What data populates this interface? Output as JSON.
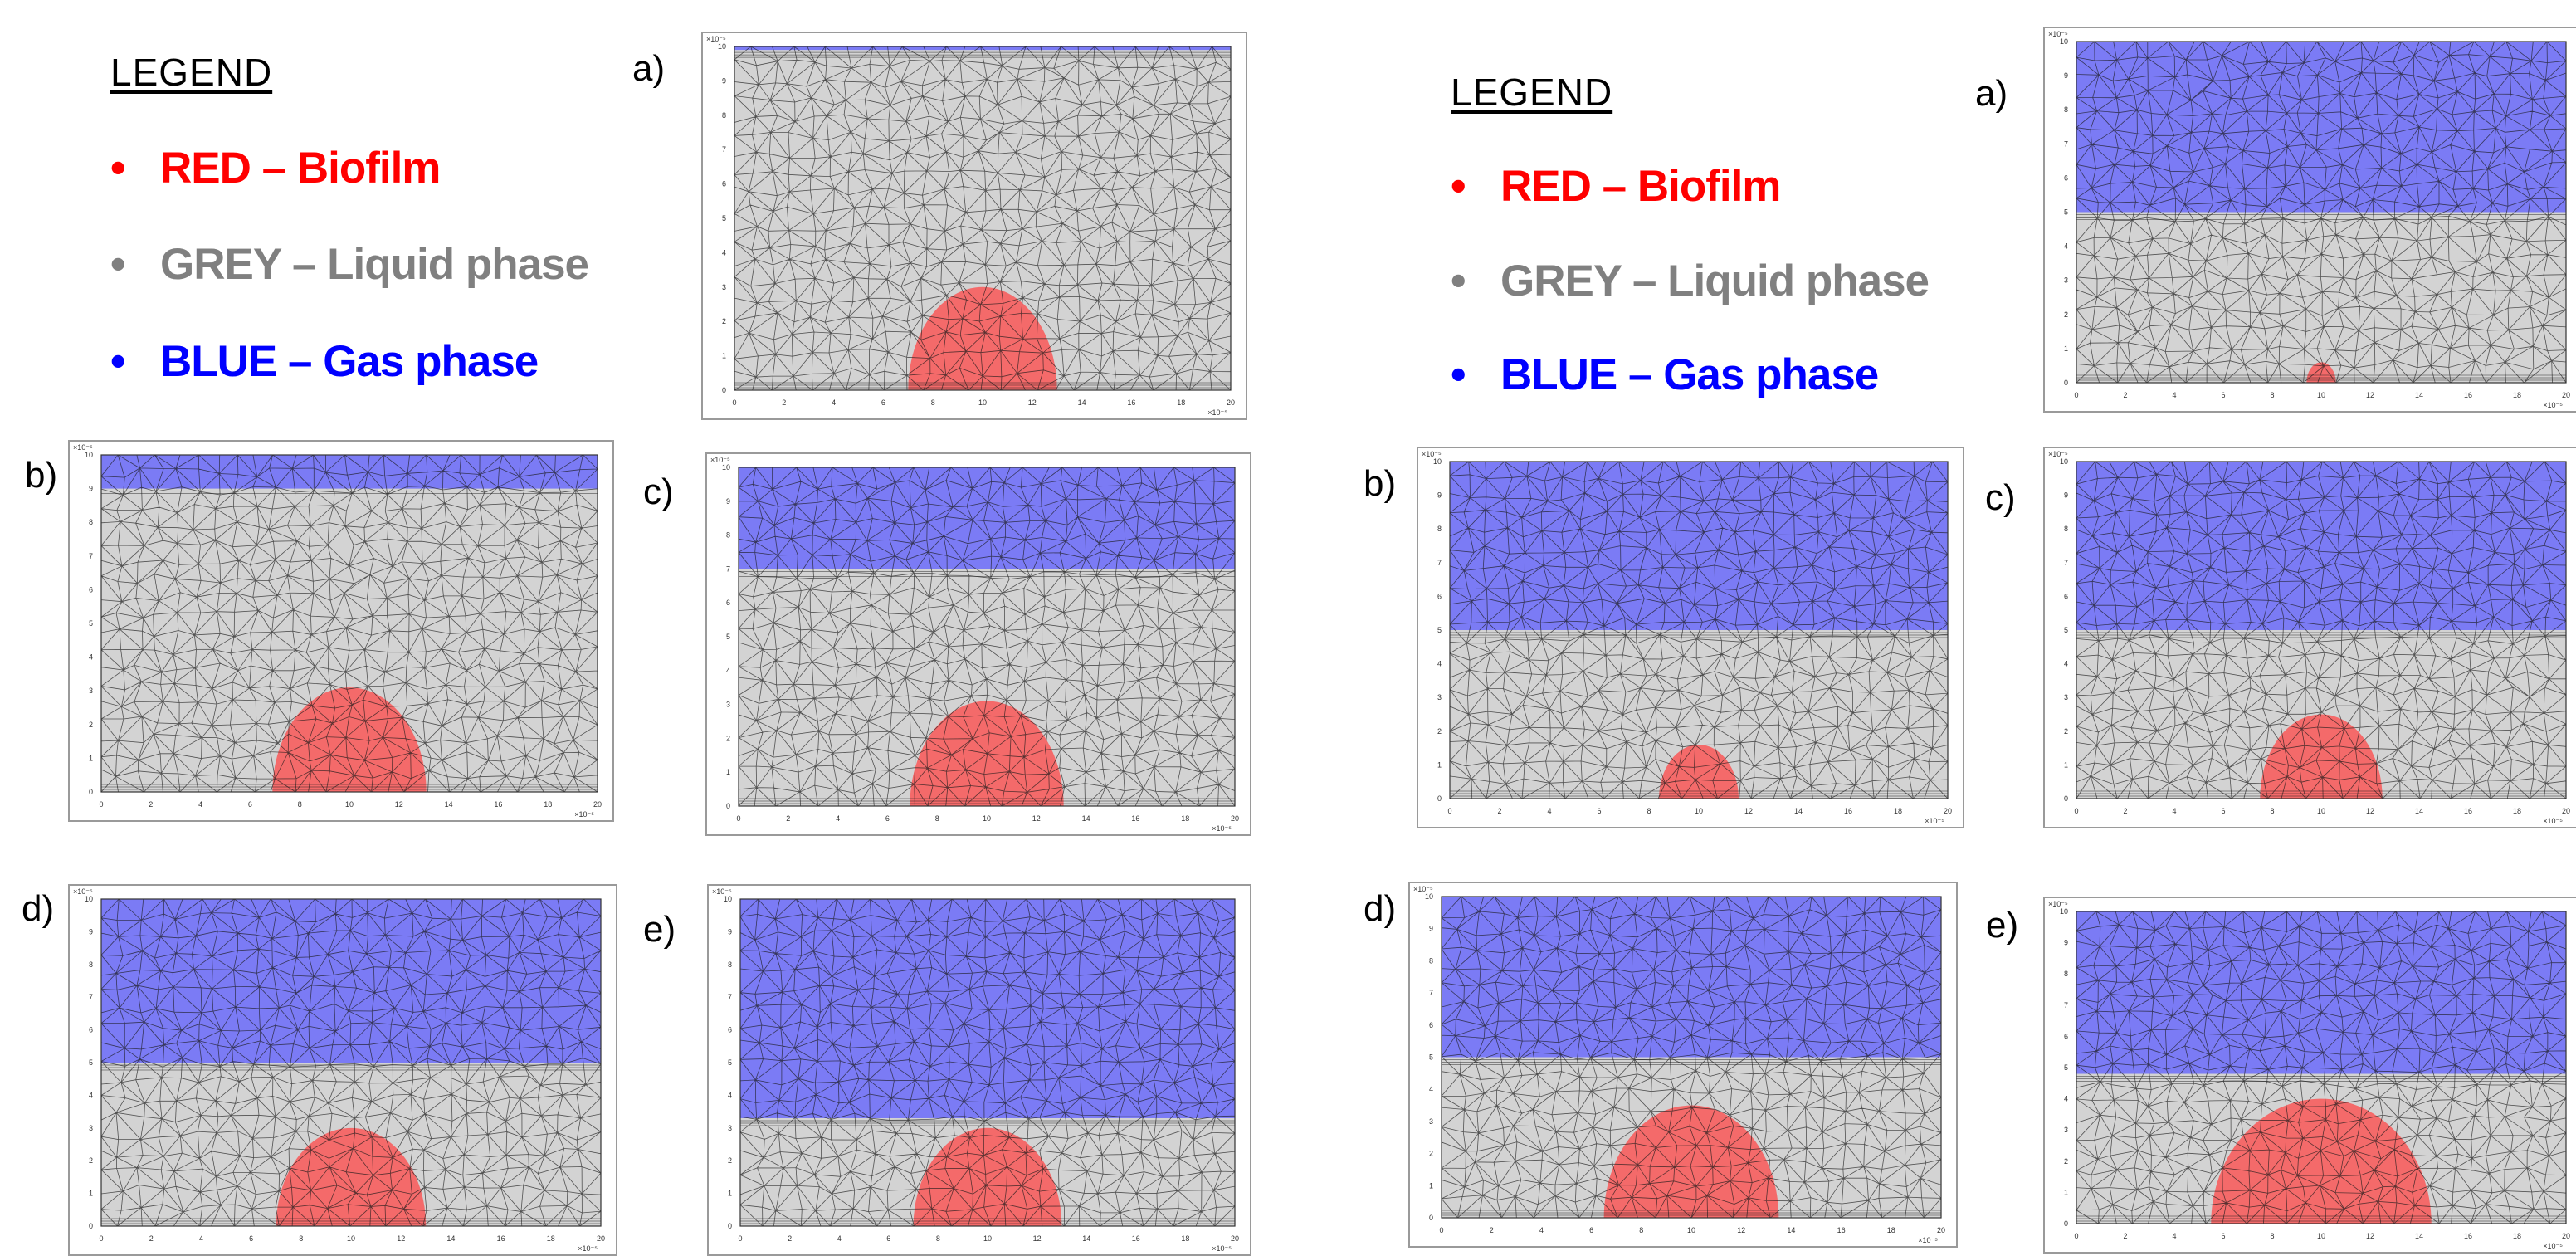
{
  "legends": [
    {
      "id": "left",
      "title": "LEGEND",
      "items": [
        {
          "key": "red",
          "label": "RED – Biofilm",
          "color": "#ff0000"
        },
        {
          "key": "grey",
          "label": "GREY – Liquid phase",
          "color": "#808080"
        },
        {
          "key": "blue",
          "label": "BLUE – Gas phase",
          "color": "#0000ff"
        }
      ]
    },
    {
      "id": "right",
      "title": "LEGEND",
      "items": [
        {
          "key": "red",
          "label": "RED – Biofilm",
          "color": "#ff0000"
        },
        {
          "key": "grey",
          "label": "GREY – Liquid phase",
          "color": "#808080"
        },
        {
          "key": "blue",
          "label": "BLUE – Gas phase",
          "color": "#0000ff"
        }
      ]
    }
  ],
  "colors": {
    "liquid": "#d3d3d3",
    "gas": "#7b7bf5",
    "biofilm": "#f46a6a",
    "mesh_line": "#1a1a1a",
    "frame": "#9a9a9a"
  },
  "axes": {
    "x_ticks": [
      "0",
      "2",
      "4",
      "6",
      "8",
      "10",
      "12",
      "14",
      "16",
      "18",
      "20"
    ],
    "y_ticks": [
      "0",
      "1",
      "2",
      "3",
      "4",
      "5",
      "6",
      "7",
      "8",
      "9",
      "10"
    ],
    "x_range": [
      0,
      20
    ],
    "y_range": [
      0,
      10
    ],
    "x_exponent": "×10⁻⁵",
    "y_exponent": "×10⁻⁵"
  },
  "panels": [
    {
      "id": "left-a",
      "label": "a)",
      "gas_level": 0.99,
      "biofilm_center": 10,
      "biofilm_radius": 3.0,
      "biofilm_height": 3.0
    },
    {
      "id": "left-b",
      "label": "b)",
      "gas_level": 0.9,
      "biofilm_center": 10,
      "biofilm_radius": 3.1,
      "biofilm_height": 3.1
    },
    {
      "id": "left-c",
      "label": "c)",
      "gas_level": 0.7,
      "biofilm_center": 10,
      "biofilm_radius": 3.1,
      "biofilm_height": 3.1
    },
    {
      "id": "left-d",
      "label": "d)",
      "gas_level": 0.5,
      "biofilm_center": 10,
      "biofilm_radius": 3.0,
      "biofilm_height": 3.0
    },
    {
      "id": "left-e",
      "label": "e)",
      "gas_level": 0.33,
      "biofilm_center": 10,
      "biofilm_radius": 3.0,
      "biofilm_height": 3.0
    },
    {
      "id": "right-a",
      "label": "a)",
      "gas_level": 0.5,
      "biofilm_center": 10,
      "biofilm_radius": 0.6,
      "biofilm_height": 0.6
    },
    {
      "id": "right-b",
      "label": "b)",
      "gas_level": 0.5,
      "biofilm_center": 10,
      "biofilm_radius": 1.6,
      "biofilm_height": 1.6
    },
    {
      "id": "right-c",
      "label": "c)",
      "gas_level": 0.5,
      "biofilm_center": 10,
      "biofilm_radius": 2.5,
      "biofilm_height": 2.5
    },
    {
      "id": "right-d",
      "label": "d)",
      "gas_level": 0.5,
      "biofilm_center": 10,
      "biofilm_radius": 3.5,
      "biofilm_height": 3.5
    },
    {
      "id": "right-e",
      "label": "e)",
      "gas_level": 0.48,
      "biofilm_center": 10,
      "biofilm_radius": 4.5,
      "biofilm_height": 4.0
    }
  ]
}
